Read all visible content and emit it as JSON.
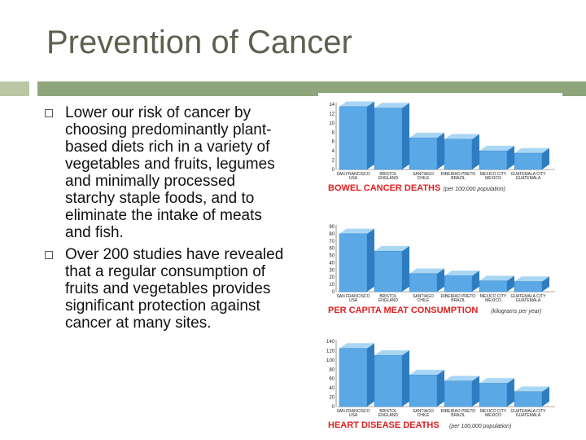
{
  "slide": {
    "title": "Prevention of Cancer",
    "bullets": [
      "Lower our risk of cancer by choosing predominantly plant-based diets rich in a variety of vegetables and fruits, legumes and minimally processed starchy staple foods, and to eliminate the intake of meats and fish.",
      "Over 200 studies have revealed that a regular consumption of fruits and vegetables provides significant protection against cancer at many sites."
    ]
  },
  "colors": {
    "bar_front": "#5aa9e6",
    "bar_top": "#a9d6f5",
    "bar_side": "#2f7dc0",
    "title_red": "#e02020"
  },
  "chart_data": [
    {
      "type": "bar",
      "title": "BOWEL CANCER DEATHS",
      "unit_note": "(per 100,000 population)",
      "categories": [
        [
          "SAN FRANCISCO",
          "USA"
        ],
        [
          "BRISTOL",
          "ENGLAND"
        ],
        [
          "SANTIAGO",
          "CHILE"
        ],
        [
          "RIBEIRAO PRETO",
          "BRAZIL"
        ],
        [
          "MEXICO CITY",
          "MEXICO"
        ],
        [
          "GUATEMALA CITY",
          "GUATEMALA"
        ]
      ],
      "values": [
        13.5,
        13.2,
        6.8,
        6.5,
        4.0,
        3.5
      ],
      "yticks": [
        0,
        2,
        4,
        6,
        8,
        10,
        12,
        14
      ],
      "ylim": [
        0,
        14
      ]
    },
    {
      "type": "bar",
      "title": "PER CAPITA MEAT CONSUMPTION",
      "unit_note": "(kilograms per year)",
      "categories": [
        [
          "SAN FRANCISCO",
          "USA"
        ],
        [
          "BRISTOL",
          "ENGLAND"
        ],
        [
          "SANTIAGO",
          "CHILE"
        ],
        [
          "RIBEIRAO PRETO",
          "BRAZIL"
        ],
        [
          "MEXICO CITY",
          "MEXICO"
        ],
        [
          "GUATEMALA CITY",
          "GUATEMALA"
        ]
      ],
      "values": [
        80,
        56,
        25,
        22,
        15,
        14
      ],
      "yticks": [
        0,
        10,
        20,
        30,
        40,
        50,
        60,
        70,
        80,
        90
      ],
      "ylim": [
        0,
        90
      ]
    },
    {
      "type": "bar",
      "title": "HEART DISEASE DEATHS",
      "unit_note": "(per 100,000 population)",
      "categories": [
        [
          "SAN FRANCISCO",
          "USA"
        ],
        [
          "BRISTOL",
          "ENGLAND"
        ],
        [
          "SANTIAGO",
          "CHILE"
        ],
        [
          "RIBEIRAO PRETO",
          "BRAZIL"
        ],
        [
          "MEXICO CITY",
          "MEXICO"
        ],
        [
          "GUATEMALA CITY",
          "GUATEMALA"
        ]
      ],
      "values": [
        125,
        110,
        68,
        55,
        50,
        32
      ],
      "yticks": [
        0,
        20,
        40,
        60,
        80,
        100,
        120,
        140
      ],
      "ylim": [
        0,
        140
      ]
    }
  ]
}
